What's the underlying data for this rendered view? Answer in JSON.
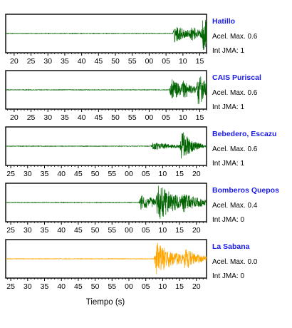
{
  "chart_data": {
    "type": "line",
    "xlabel": "Tiempo (s)",
    "panels": [
      {
        "station": "Hatillo",
        "acel": "Acel. Max. 0.6",
        "jma": "Int JMA: 1",
        "color": "#006400",
        "tick_labels": [
          "20",
          "25",
          "30",
          "35",
          "40",
          "45",
          "50",
          "55",
          "00",
          "05",
          "10",
          "15"
        ],
        "x_start": 17.5,
        "x_end": 77.0,
        "bursts": [
          {
            "t": 67.5,
            "amp": 0.55,
            "decay": 4.0
          },
          {
            "t": 72.5,
            "amp": 0.3,
            "decay": 2.5
          },
          {
            "t": 75.8,
            "amp": 1.0,
            "decay": 2.5
          }
        ]
      },
      {
        "station": "CAIS Puriscal",
        "acel": "Acel. Max. 0.6",
        "jma": "Int JMA: 1",
        "color": "#006400",
        "tick_labels": [
          "20",
          "25",
          "30",
          "35",
          "40",
          "45",
          "50",
          "55",
          "00",
          "05",
          "10",
          "15"
        ],
        "x_start": 17.5,
        "x_end": 77.0,
        "bursts": [
          {
            "t": 66.5,
            "amp": 0.75,
            "decay": 3.0
          },
          {
            "t": 70.0,
            "amp": 0.35,
            "decay": 3.0
          },
          {
            "t": 74.5,
            "amp": 0.9,
            "decay": 3.0
          }
        ]
      },
      {
        "station": "Bebedero, Escazu",
        "acel": "Acel. Max. 0.6",
        "jma": "Int JMA: 1",
        "color": "#006400",
        "tick_labels": [
          "25",
          "30",
          "35",
          "40",
          "45",
          "50",
          "55",
          "00",
          "05",
          "10",
          "15",
          "20"
        ],
        "x_start": 23.5,
        "x_end": 83.0,
        "bursts": [
          {
            "t": 67.0,
            "amp": 0.2,
            "decay": 9.0
          },
          {
            "t": 75.5,
            "amp": 1.0,
            "decay": 2.5
          }
        ]
      },
      {
        "station": "Bomberos Quepos",
        "acel": "Acel. Max. 0.4",
        "jma": "Int JMA: 0",
        "color": "#006400",
        "tick_labels": [
          "25",
          "30",
          "35",
          "40",
          "45",
          "50",
          "55",
          "00",
          "05",
          "10",
          "15",
          "20"
        ],
        "x_start": 23.5,
        "x_end": 83.0,
        "bursts": [
          {
            "t": 63.5,
            "amp": 0.45,
            "decay": 6.0
          },
          {
            "t": 68.5,
            "amp": 1.0,
            "decay": 5.0
          },
          {
            "t": 76.0,
            "amp": 0.35,
            "decay": 5.0
          }
        ]
      },
      {
        "station": "La Sabana",
        "acel": "Acel. Max. 0.0",
        "jma": "Int JMA: 0",
        "color": "#ffa500",
        "tick_labels": [
          "25",
          "30",
          "35",
          "40",
          "45",
          "50",
          "55",
          "00",
          "05",
          "10",
          "15",
          "20"
        ],
        "x_start": 23.5,
        "x_end": 83.0,
        "bursts": [
          {
            "t": 68.0,
            "amp": 1.0,
            "decay": 6.0
          },
          {
            "t": 76.5,
            "amp": 0.5,
            "decay": 3.0
          }
        ]
      }
    ]
  }
}
